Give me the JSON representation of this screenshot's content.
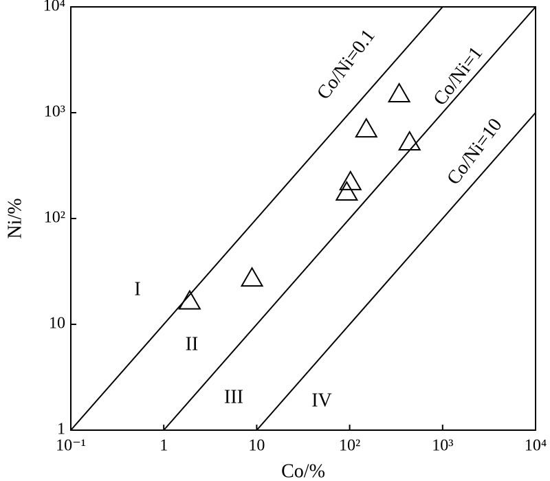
{
  "chart_data": {
    "type": "scatter",
    "x_label": "Co/%",
    "y_label": "Ni/%",
    "x_log": true,
    "y_log": true,
    "xlim": [
      0.1,
      10000
    ],
    "ylim": [
      1,
      10000
    ],
    "xticks": [
      {
        "value": 0.1,
        "label": "10⁻¹"
      },
      1,
      10,
      {
        "value": 100,
        "label": "10²"
      },
      {
        "value": 1000,
        "label": "10³"
      },
      {
        "value": 10000,
        "label": "10⁴"
      }
    ],
    "yticks": [
      1,
      10,
      {
        "value": 100,
        "label": "10²"
      },
      {
        "value": 1000,
        "label": "10³"
      },
      {
        "value": 10000,
        "label": "10⁴"
      }
    ],
    "x": [
      1.9,
      8.9,
      93,
      102,
      151,
      341,
      441
    ],
    "values": [
      17,
      28,
      182,
      228,
      719,
      1543,
      542
    ],
    "color": "#000000",
    "reference_lines": [
      {
        "label": "Co/Ni=0.1",
        "ratio": 0.1
      },
      {
        "label": "Co/Ni=1",
        "ratio": 1
      },
      {
        "label": "Co/Ni=10",
        "ratio": 10
      }
    ],
    "regions": [
      "I",
      "II",
      "III",
      "IV"
    ]
  }
}
